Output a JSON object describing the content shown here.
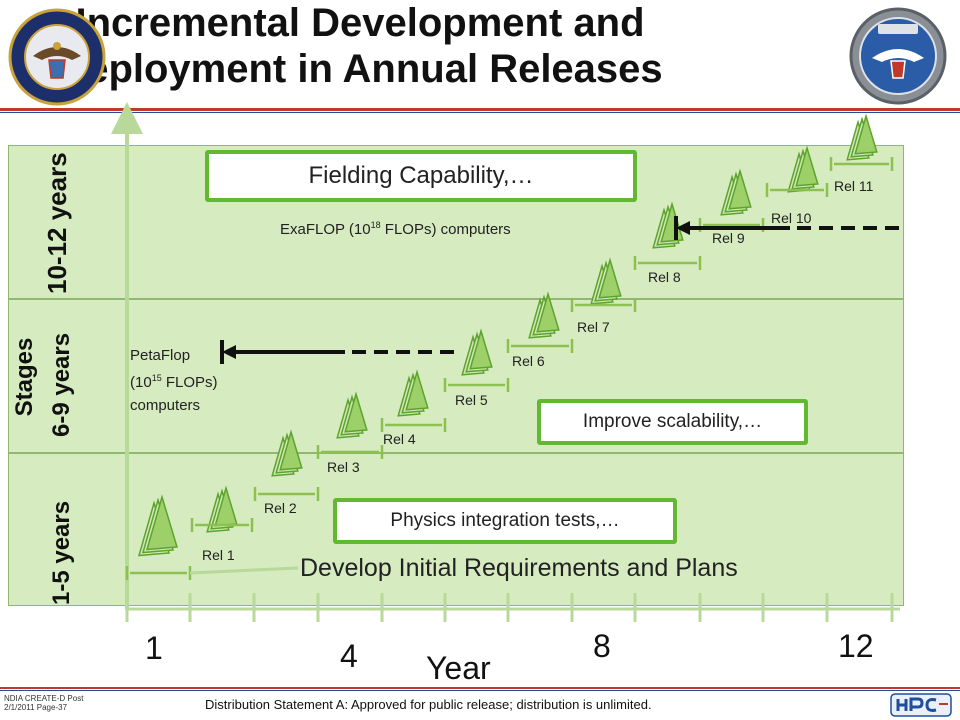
{
  "title": {
    "line1": "Incremental Development and",
    "line2": "Deployment in Annual Releases"
  },
  "stages": {
    "label": "Stages",
    "top": "10-12 years",
    "mid": "6-9 years",
    "bottom": "1-5 years"
  },
  "boxes": {
    "fielding": "Fielding Capability,…",
    "scalability": "Improve scalability,…",
    "physics": "Physics integration tests,…"
  },
  "notes": {
    "exaflop_a": "ExaFLOP (10",
    "exaflop_sup": "18",
    "exaflop_b": " FLOPs) computers",
    "peta_1": "PetaFlop",
    "peta_2a": "(10",
    "peta_2sup": "15",
    "peta_2b": " FLOPs)",
    "peta_3": "computers",
    "requirements": "Develop Initial Requirements and Plans"
  },
  "releases": [
    "Rel 1",
    "Rel 2",
    "Rel 3",
    "Rel 4",
    "Rel 5",
    "Rel 6",
    "Rel 7",
    "Rel 8",
    "Rel 9",
    "Rel 10",
    "Rel 11"
  ],
  "year_axis": {
    "ticks": [
      "1",
      "4",
      "8",
      "12"
    ],
    "label": "Year"
  },
  "footer": {
    "statement": "Distribution Statement A:  Approved for public release;  distribution is unlimited.",
    "small_1": "NDIA CREATE-D Post",
    "small_2": "2/1/2011 Page-37"
  },
  "logos": {
    "left": "Department of Defense seal",
    "right": "ASD(R&E) seal",
    "bottom_right": "HPC logo"
  },
  "colors": {
    "band": "#d6ebc0",
    "box_border": "#62b830",
    "rule_red": "#c0392b",
    "rule_blue": "#1f4e9c",
    "triangle": "#8cc152"
  }
}
